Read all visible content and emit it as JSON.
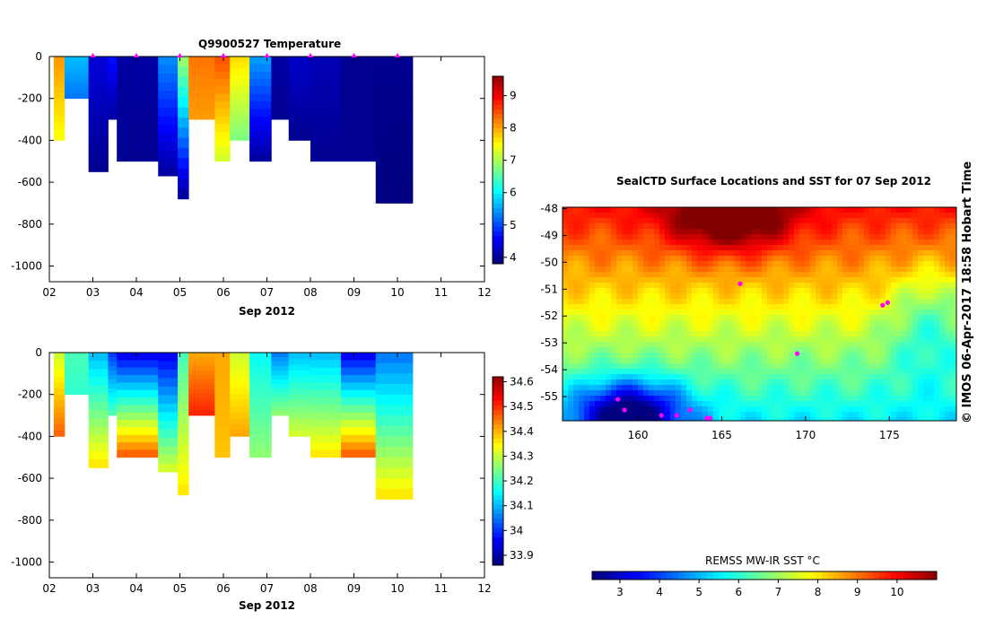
{
  "temp_panel": {
    "title": "Q9900527  Temperature",
    "xlabel": "Sep 2012",
    "x_ticks": [
      "02",
      "03",
      "04",
      "05",
      "06",
      "07",
      "08",
      "09",
      "10",
      "11",
      "12"
    ],
    "y_ticks": [
      "0",
      "-200",
      "-400",
      "-600",
      "-800",
      "-1000"
    ],
    "colorbar_ticks": [
      "9",
      "8",
      "7",
      "6",
      "5",
      "4"
    ]
  },
  "sal_panel": {
    "xlabel": "Sep 2012",
    "x_ticks": [
      "02",
      "03",
      "04",
      "05",
      "06",
      "07",
      "08",
      "09",
      "10",
      "11",
      "12"
    ],
    "y_ticks": [
      "0",
      "-200",
      "-400",
      "-600",
      "-800",
      "-1000"
    ],
    "colorbar_ticks": [
      "34.6",
      "34.5",
      "34.4",
      "34.3",
      "34.2",
      "34.1",
      "34",
      "33.9"
    ]
  },
  "map_panel": {
    "title": "SealCTD Surface Locations and SST for 07 Sep 2012",
    "lat_ticks": [
      "-48",
      "-49",
      "-50",
      "-51",
      "-52",
      "-53",
      "-54",
      "-55"
    ],
    "lon_ticks": [
      "160",
      "165",
      "170",
      "175"
    ],
    "colorbar_title": "REMSS MW-IR SST °C",
    "colorbar_ticks": [
      "3",
      "4",
      "5",
      "6",
      "7",
      "8",
      "9",
      "10"
    ]
  },
  "credit": "© IMOS 06-Apr-2017 18:58 Hobart Time",
  "chart_data": [
    {
      "type": "heatmap",
      "name": "temperature-section",
      "title": "Q9900527  Temperature",
      "xlabel": "Sep 2012",
      "xlim": [
        2,
        12
      ],
      "ylim": [
        -1075,
        0
      ],
      "colorbar_range": [
        3.8,
        9.6
      ],
      "profile_day_markers": [
        3.0,
        4.0,
        5.0,
        6.0,
        7.0,
        8.0,
        9.0,
        10.0
      ],
      "casts": [
        {
          "x0": 2.1,
          "x1": 2.35,
          "depth": 400,
          "top": 8.0,
          "bottom": 7.4
        },
        {
          "x0": 2.35,
          "x1": 2.9,
          "depth": 200,
          "top": 5.6,
          "bottom": 5.2
        },
        {
          "x0": 2.9,
          "x1": 3.35,
          "depth": 550,
          "top": 4.3,
          "bottom": 3.9
        },
        {
          "x0": 3.35,
          "x1": 3.55,
          "depth": 300,
          "top": 4.6,
          "bottom": 4.0
        },
        {
          "x0": 3.55,
          "x1": 4.5,
          "depth": 500,
          "top": 4.0,
          "bottom": 3.9
        },
        {
          "x0": 4.5,
          "x1": 4.95,
          "depth": 570,
          "top": 5.3,
          "bottom": 4.0
        },
        {
          "x0": 4.95,
          "x1": 5.2,
          "depth": 680,
          "top": 6.8,
          "bottom": 4.0
        },
        {
          "x0": 5.2,
          "x1": 5.8,
          "depth": 300,
          "top": 8.2,
          "bottom": 8.0
        },
        {
          "x0": 5.8,
          "x1": 6.15,
          "depth": 500,
          "top": 8.4,
          "bottom": 7.2
        },
        {
          "x0": 6.15,
          "x1": 6.6,
          "depth": 400,
          "top": 7.6,
          "bottom": 6.7
        },
        {
          "x0": 6.6,
          "x1": 7.1,
          "depth": 500,
          "top": 5.4,
          "bottom": 4.0
        },
        {
          "x0": 7.1,
          "x1": 7.5,
          "depth": 300,
          "top": 4.0,
          "bottom": 3.9
        },
        {
          "x0": 7.5,
          "x1": 8.0,
          "depth": 400,
          "top": 4.2,
          "bottom": 3.9
        },
        {
          "x0": 8.0,
          "x1": 8.7,
          "depth": 500,
          "top": 4.1,
          "bottom": 3.9
        },
        {
          "x0": 8.7,
          "x1": 9.5,
          "depth": 500,
          "top": 3.9,
          "bottom": 3.9
        },
        {
          "x0": 9.5,
          "x1": 10.35,
          "depth": 700,
          "top": 3.9,
          "bottom": 3.8
        }
      ]
    },
    {
      "type": "heatmap",
      "name": "salinity-section",
      "title": "",
      "xlabel": "Sep 2012",
      "xlim": [
        2,
        12
      ],
      "ylim": [
        -1075,
        0
      ],
      "colorbar_range": [
        33.86,
        34.62
      ],
      "casts": [
        {
          "x0": 2.1,
          "x1": 2.35,
          "depth": 400,
          "top": 34.3,
          "bottom": 34.45
        },
        {
          "x0": 2.35,
          "x1": 2.9,
          "depth": 200,
          "top": 34.2,
          "bottom": 34.18
        },
        {
          "x0": 2.9,
          "x1": 3.35,
          "depth": 550,
          "top": 34.1,
          "bottom": 34.35
        },
        {
          "x0": 3.35,
          "x1": 3.55,
          "depth": 300,
          "top": 34.0,
          "bottom": 34.2
        },
        {
          "x0": 3.55,
          "x1": 4.5,
          "depth": 500,
          "top": 33.95,
          "bottom": 34.45
        },
        {
          "x0": 4.5,
          "x1": 4.95,
          "depth": 570,
          "top": 33.95,
          "bottom": 34.3
        },
        {
          "x0": 4.95,
          "x1": 5.2,
          "depth": 680,
          "top": 34.2,
          "bottom": 34.35
        },
        {
          "x0": 5.2,
          "x1": 5.8,
          "depth": 300,
          "top": 34.4,
          "bottom": 34.5
        },
        {
          "x0": 5.8,
          "x1": 6.15,
          "depth": 500,
          "top": 34.4,
          "bottom": 34.38
        },
        {
          "x0": 6.15,
          "x1": 6.6,
          "depth": 400,
          "top": 34.3,
          "bottom": 34.4
        },
        {
          "x0": 6.6,
          "x1": 7.1,
          "depth": 500,
          "top": 34.15,
          "bottom": 34.25
        },
        {
          "x0": 7.1,
          "x1": 7.5,
          "depth": 300,
          "top": 34.05,
          "bottom": 34.25
        },
        {
          "x0": 7.5,
          "x1": 8.0,
          "depth": 400,
          "top": 34.1,
          "bottom": 34.3
        },
        {
          "x0": 8.0,
          "x1": 8.7,
          "depth": 500,
          "top": 34.1,
          "bottom": 34.35
        },
        {
          "x0": 8.7,
          "x1": 9.5,
          "depth": 500,
          "top": 33.95,
          "bottom": 34.45
        },
        {
          "x0": 9.5,
          "x1": 10.35,
          "depth": 700,
          "top": 34.05,
          "bottom": 34.35
        }
      ]
    },
    {
      "type": "heatmap",
      "name": "sst-map",
      "title": "SealCTD Surface Locations and SST for 07 Sep 2012",
      "xlim": [
        155.5,
        179
      ],
      "ylim": [
        -55.9,
        -47.95
      ],
      "colorbar_title": "REMSS MW-IR SST °C",
      "colorbar_range": [
        2.3,
        11
      ],
      "surface_locations": [
        [
          158.8,
          -55.1
        ],
        [
          159.2,
          -55.5
        ],
        [
          161.4,
          -55.7
        ],
        [
          162.3,
          -55.7
        ],
        [
          163.1,
          -55.5
        ],
        [
          164.1,
          -55.8
        ],
        [
          164.3,
          -55.8
        ],
        [
          174.6,
          -51.6
        ],
        [
          174.9,
          -51.5
        ],
        [
          169.5,
          -53.4
        ],
        [
          166.1,
          -50.8
        ]
      ]
    }
  ]
}
